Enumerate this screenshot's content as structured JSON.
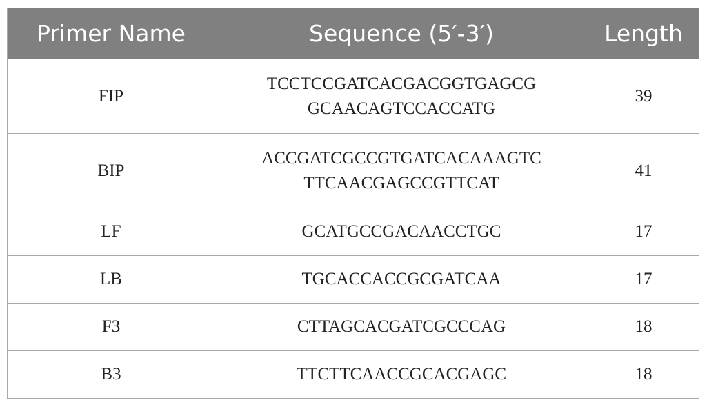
{
  "table": {
    "headers": [
      "Primer Name",
      "Sequence (5′-3′)",
      "Length"
    ],
    "rows": [
      {
        "name": "FIP",
        "sequence": [
          "TCCTCCGATCACGACGGTGAGCG",
          "GCAACAGTCCACCATG"
        ],
        "length": "39"
      },
      {
        "name": "BIP",
        "sequence": [
          "ACCGATCGCCGTGATCACAAAGTC",
          "TTCAACGAGCCGTTCAT"
        ],
        "length": "41"
      },
      {
        "name": "LF",
        "sequence": [
          "GCATGCCGACAACCTGC"
        ],
        "length": "17"
      },
      {
        "name": "LB",
        "sequence": [
          "TGCACCACCGCGATCAA"
        ],
        "length": "17"
      },
      {
        "name": "F3",
        "sequence": [
          "CTTAGCACGATCGCCCAG"
        ],
        "length": "18"
      },
      {
        "name": "B3",
        "sequence": [
          "TTCTTCAACCGCACGAGC"
        ],
        "length": "18"
      }
    ]
  },
  "colors": {
    "header_bg": "#808080",
    "header_text": "#ffffff",
    "border": "#a9a9a9"
  }
}
